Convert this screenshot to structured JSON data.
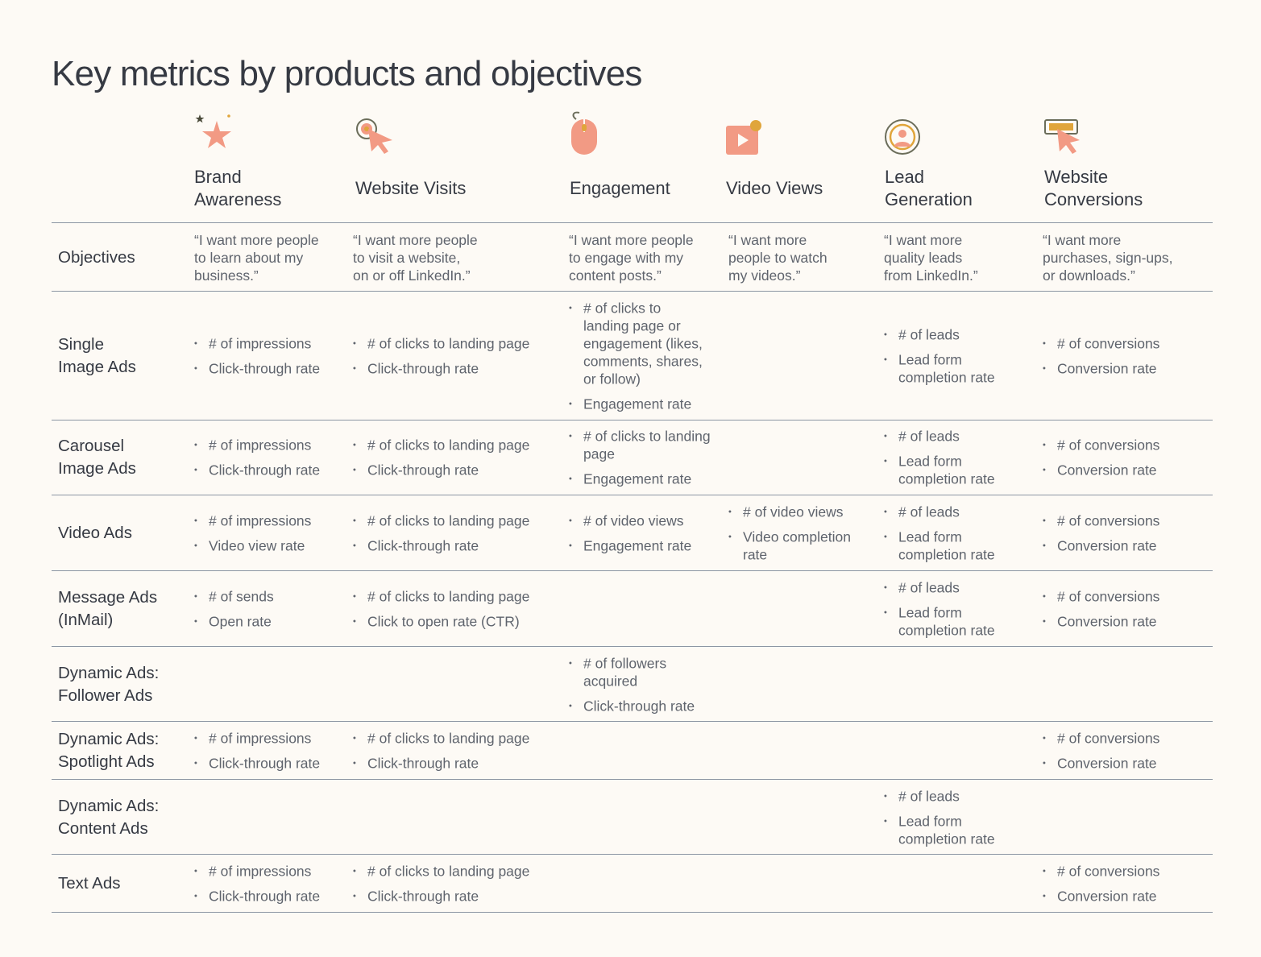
{
  "title": "Key metrics by products and objectives",
  "colors": {
    "accent": "#f29a84",
    "accent_dark": "#e8806a",
    "gold": "#e0a53b",
    "rule": "#8c96a3",
    "background": "#fdfaf5"
  },
  "columns": [
    {
      "label": "Brand\nAwareness",
      "icon": "star-icon"
    },
    {
      "label": "Website Visits",
      "icon": "cursor-target-icon"
    },
    {
      "label": "Engagement",
      "icon": "mouse-icon"
    },
    {
      "label": "Video Views",
      "icon": "video-play-icon"
    },
    {
      "label": "Lead\nGeneration",
      "icon": "lead-target-icon"
    },
    {
      "label": "Website\nConversions",
      "icon": "browser-click-icon"
    }
  ],
  "objectives": {
    "label": "Objectives",
    "quotes": [
      "“I want more people\nto learn about my\nbusiness.”",
      "“I want more people\nto visit a website,\non or off LinkedIn.”",
      "“I want more people\nto engage with my\ncontent posts.”",
      "“I want more\npeople to watch\nmy videos.”",
      "“I want more\nquality leads\nfrom LinkedIn.”",
      "“I want more\npurchases, sign-ups,\nor downloads.”"
    ]
  },
  "rows": [
    {
      "label": "Single\nImage Ads",
      "cells": [
        [
          "# of impressions",
          "Click-through rate"
        ],
        [
          "# of clicks to landing page",
          "Click-through rate"
        ],
        [
          "# of clicks to\nlanding page or\nengagement (likes,\ncomments, shares,\nor follow)",
          "Engagement rate"
        ],
        [],
        [
          "# of leads",
          "Lead form\ncompletion rate"
        ],
        [
          "# of conversions",
          "Conversion rate"
        ]
      ]
    },
    {
      "label": "Carousel\nImage Ads",
      "cells": [
        [
          "# of impressions",
          "Click-through rate"
        ],
        [
          "# of clicks to landing page",
          "Click-through rate"
        ],
        [
          "# of clicks to landing\npage",
          "Engagement rate"
        ],
        [],
        [
          "# of leads",
          "Lead form\ncompletion rate"
        ],
        [
          "# of conversions",
          "Conversion rate"
        ]
      ]
    },
    {
      "label": "Video Ads",
      "cells": [
        [
          "# of impressions",
          "Video view rate"
        ],
        [
          "# of clicks to landing page",
          "Click-through rate"
        ],
        [
          "# of video views",
          "Engagement rate"
        ],
        [
          "# of video views",
          "Video completion\nrate"
        ],
        [
          "# of leads",
          "Lead form\ncompletion rate"
        ],
        [
          "# of conversions",
          "Conversion rate"
        ]
      ]
    },
    {
      "label": "Message Ads\n(InMail)",
      "cells": [
        [
          "# of sends",
          "Open rate"
        ],
        [
          " # of clicks to landing page",
          "Click to open rate (CTR)"
        ],
        [],
        [],
        [
          "# of leads",
          "Lead form\ncompletion rate"
        ],
        [
          "# of conversions",
          "Conversion rate"
        ]
      ]
    },
    {
      "label": "Dynamic Ads:\nFollower Ads",
      "cells": [
        [],
        [],
        [
          "# of followers\nacquired",
          "Click-through rate"
        ],
        [],
        [],
        []
      ]
    },
    {
      "label": "Dynamic Ads:\nSpotlight Ads",
      "cells": [
        [
          "# of impressions",
          "Click-through rate"
        ],
        [
          "# of clicks to landing page",
          "Click-through rate"
        ],
        [],
        [],
        [],
        [
          "# of conversions",
          "Conversion rate"
        ]
      ]
    },
    {
      "label": "Dynamic Ads:\nContent Ads",
      "cells": [
        [],
        [],
        [],
        [],
        [
          "# of leads",
          "Lead form\ncompletion rate"
        ],
        []
      ]
    },
    {
      "label": "Text Ads",
      "cells": [
        [
          "# of impressions",
          "Click-through rate"
        ],
        [
          "# of clicks to landing page",
          "Click-through rate"
        ],
        [],
        [],
        [],
        [
          "# of conversions",
          "Conversion rate"
        ]
      ]
    }
  ]
}
